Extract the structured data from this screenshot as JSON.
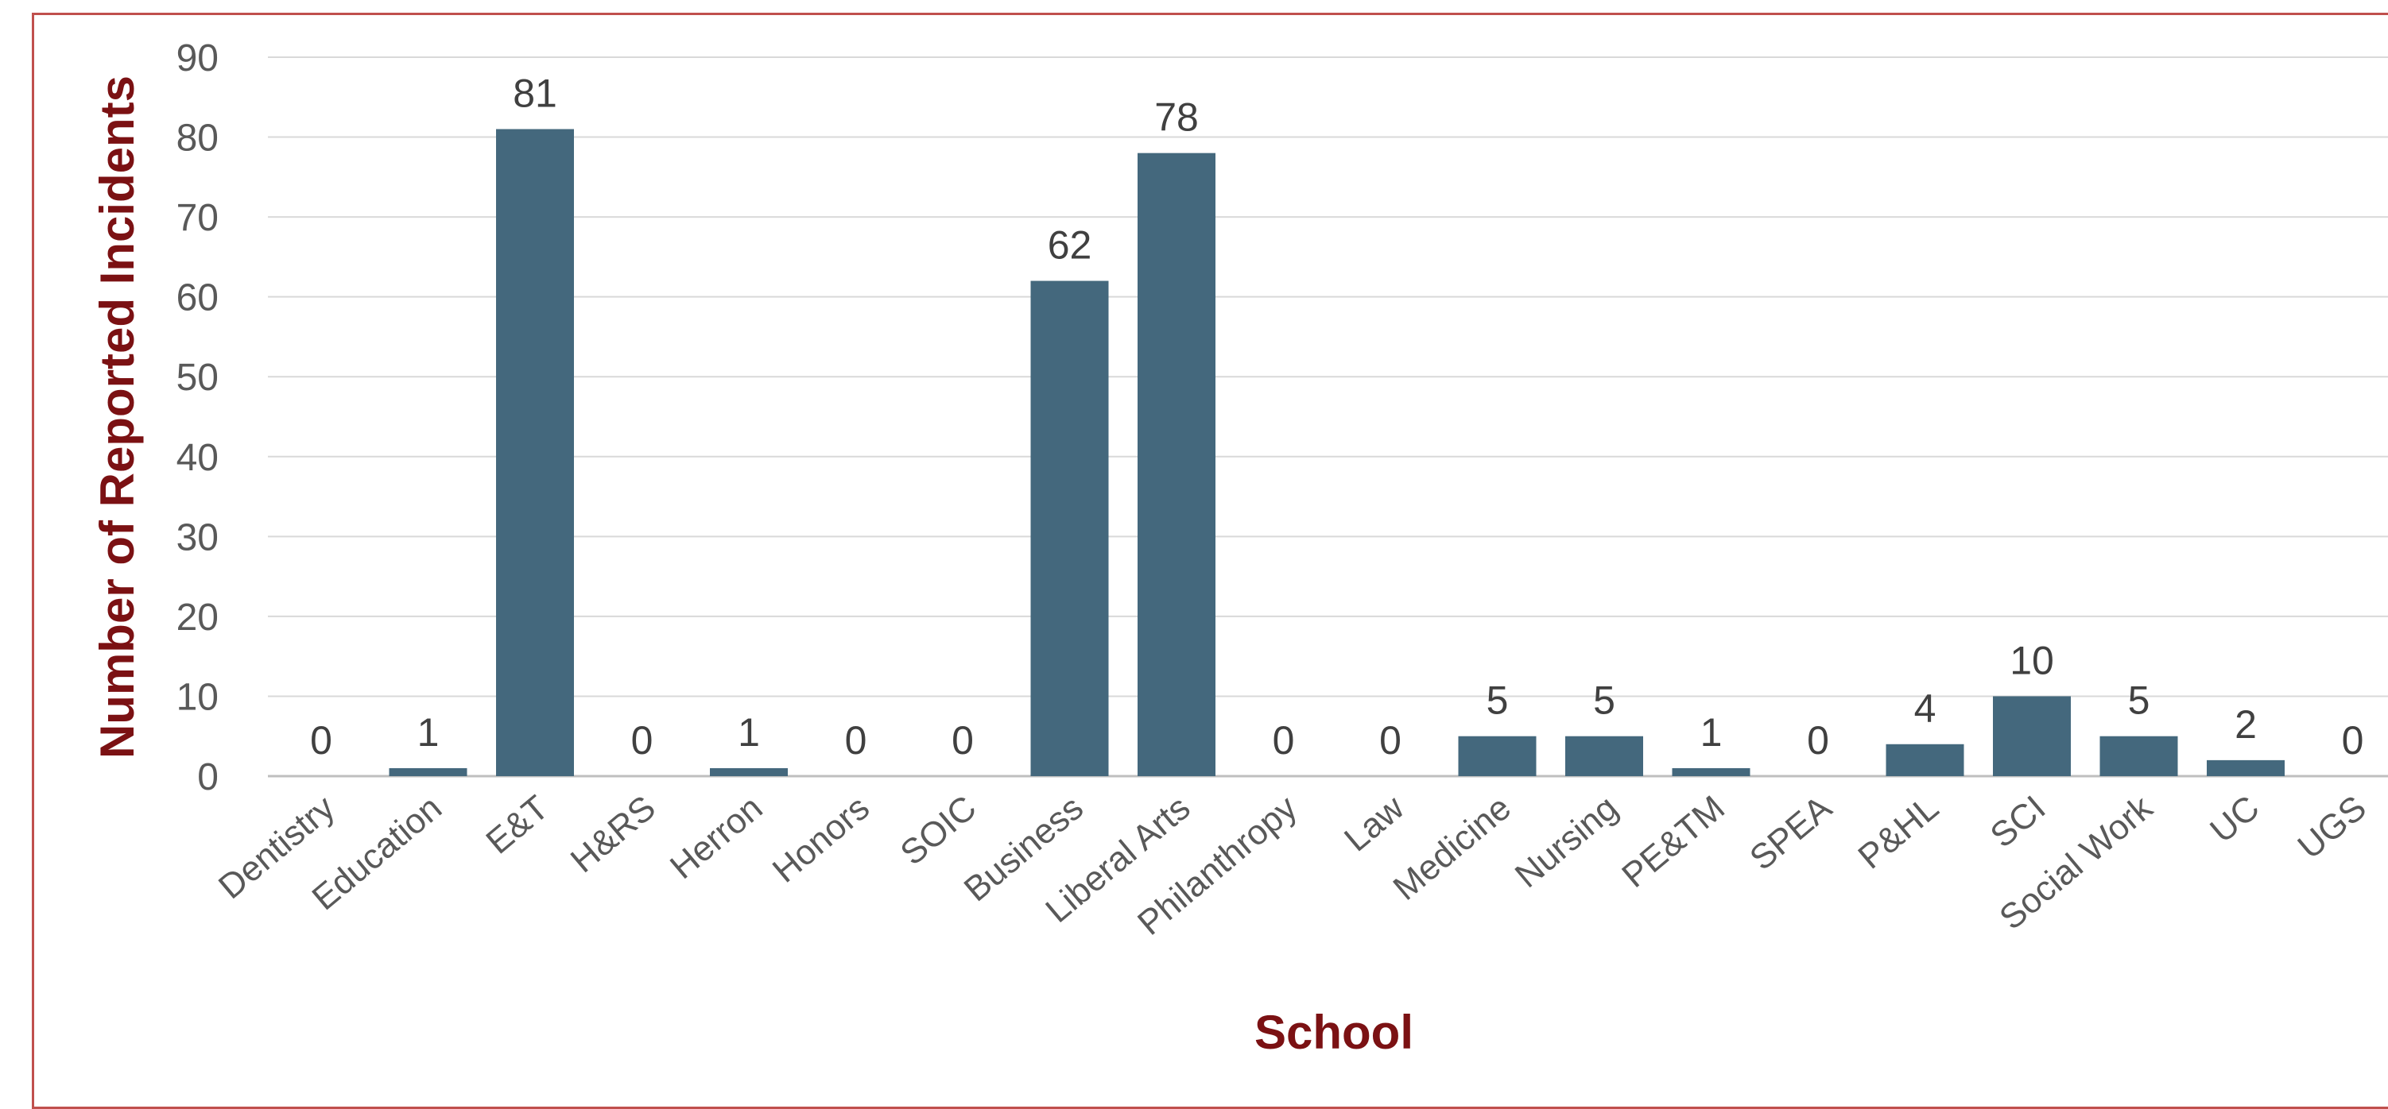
{
  "chart_data": {
    "type": "bar",
    "title": "",
    "xlabel": "School",
    "ylabel": "Number of Reported Incidents",
    "categories": [
      "Dentistry",
      "Education",
      "E&T",
      "H&RS",
      "Herron",
      "Honors",
      "SOIC",
      "Business",
      "Liberal Arts",
      "Philanthropy",
      "Law",
      "Medicine",
      "Nursing",
      "PE&TM",
      "SPEA",
      "P&HL",
      "SCI",
      "Social Work",
      "UC",
      "UGS"
    ],
    "values": [
      0,
      1,
      81,
      0,
      1,
      0,
      0,
      62,
      78,
      0,
      0,
      5,
      5,
      1,
      0,
      4,
      10,
      5,
      2,
      0
    ],
    "ylim": [
      0,
      90
    ],
    "yticks": [
      0,
      10,
      20,
      30,
      40,
      50,
      60,
      70,
      80,
      90
    ],
    "grid": true,
    "data_labels": true,
    "bar_color": "#44687d",
    "axis_title_color": "#7b1113",
    "border_color": "#c0504d"
  }
}
